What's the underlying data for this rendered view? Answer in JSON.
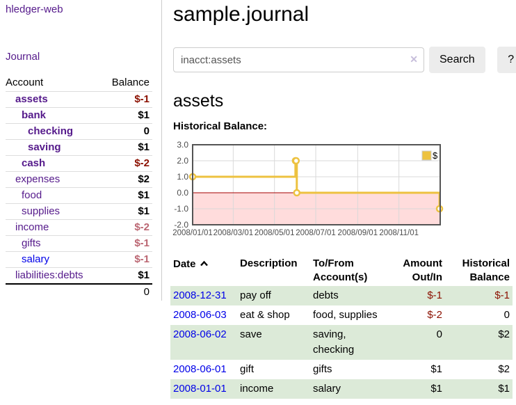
{
  "sidebar": {
    "brand": "hledger-web",
    "journal_label": "Journal",
    "accounts_table": {
      "headers": {
        "account": "Account",
        "balance": "Balance"
      },
      "rows": [
        {
          "account": "assets",
          "balance": "$-1",
          "indent": 1,
          "bold": true,
          "link_color": "purple",
          "balance_class": "neg-strong"
        },
        {
          "account": "bank",
          "balance": "$1",
          "indent": 2,
          "bold": true,
          "link_color": "purple",
          "balance_class": ""
        },
        {
          "account": "checking",
          "balance": "0",
          "indent": 3,
          "bold": true,
          "link_color": "purple",
          "balance_class": ""
        },
        {
          "account": "saving",
          "balance": "$1",
          "indent": 3,
          "bold": true,
          "link_color": "purple",
          "balance_class": ""
        },
        {
          "account": "cash",
          "balance": "$-2",
          "indent": 2,
          "bold": true,
          "link_color": "purple",
          "balance_class": "neg-strong"
        },
        {
          "account": "expenses",
          "balance": "$2",
          "indent": 1,
          "bold": false,
          "link_color": "purple",
          "balance_class": ""
        },
        {
          "account": "food",
          "balance": "$1",
          "indent": 2,
          "bold": false,
          "link_color": "purple",
          "balance_class": ""
        },
        {
          "account": "supplies",
          "balance": "$1",
          "indent": 2,
          "bold": false,
          "link_color": "purple",
          "balance_class": ""
        },
        {
          "account": "income",
          "balance": "$-2",
          "indent": 1,
          "bold": false,
          "link_color": "purple",
          "balance_class": "neg-muted"
        },
        {
          "account": "gifts",
          "balance": "$-1",
          "indent": 2,
          "bold": false,
          "link_color": "purple",
          "balance_class": "neg-muted"
        },
        {
          "account": "salary",
          "balance": "$-1",
          "indent": 2,
          "bold": false,
          "link_color": "blue",
          "balance_class": "neg-muted"
        },
        {
          "account": "liabilities:debts",
          "balance": "$1",
          "indent": 1,
          "bold": false,
          "link_color": "purple",
          "balance_class": ""
        }
      ],
      "total": "0"
    }
  },
  "header": {
    "title": "sample.journal"
  },
  "search": {
    "query": "inacct:assets",
    "clear_icon": "✕",
    "button_label": "Search",
    "help_label": "?"
  },
  "account_page": {
    "heading": "assets",
    "chart_title": "Historical Balance:"
  },
  "chart_data": {
    "type": "line",
    "step": true,
    "title": "Historical Balance",
    "legend_position": "top-right",
    "ylim": [
      -2,
      3
    ],
    "xlim_days": [
      0,
      366
    ],
    "grid": true,
    "colors": {
      "series": "#edc240",
      "marker_fill": "#ffffff",
      "grid": "#d9d9d9",
      "border": "#545454",
      "negative_region": "#ffdcdc",
      "zero_line": "#a40000"
    },
    "series": [
      {
        "name": "$",
        "color": "#edc240",
        "points": [
          {
            "date": "2008/01/01",
            "day": 0,
            "value": 1
          },
          {
            "date": "2008/06/01",
            "day": 152,
            "value": 2
          },
          {
            "date": "2008/06/02",
            "day": 153,
            "value": 2
          },
          {
            "date": "2008/06/03",
            "day": 154,
            "value": 0
          },
          {
            "date": "2008/12/31",
            "day": 365,
            "value": -1
          }
        ]
      }
    ],
    "y_ticks": [
      {
        "label": "3.0",
        "value": 3
      },
      {
        "label": "2.0",
        "value": 2
      },
      {
        "label": "1.0",
        "value": 1
      },
      {
        "label": "0.0",
        "value": 0
      },
      {
        "label": "-1.0",
        "value": -1
      },
      {
        "label": "-2.0",
        "value": -2
      }
    ],
    "x_ticks": [
      {
        "label": "2008/01/01",
        "day": 0
      },
      {
        "label": "2008/03/01",
        "day": 60
      },
      {
        "label": "2008/05/01",
        "day": 121
      },
      {
        "label": "2008/07/01",
        "day": 182
      },
      {
        "label": "2008/09/01",
        "day": 244
      },
      {
        "label": "2008/11/01",
        "day": 305
      }
    ]
  },
  "transactions": {
    "headers": {
      "date": "Date",
      "description": "Description",
      "tofrom": "To/From Account(s)",
      "amount": "Amount Out/In",
      "balance": "Historical Balance"
    },
    "rows": [
      {
        "date": "2008-12-31",
        "description": "pay off",
        "accounts": "debts",
        "amount": "$-1",
        "balance": "$-1",
        "amount_neg": true,
        "balance_neg": true
      },
      {
        "date": "2008-06-03",
        "description": "eat & shop",
        "accounts": "food, supplies",
        "amount": "$-2",
        "balance": "0",
        "amount_neg": true,
        "balance_neg": false
      },
      {
        "date": "2008-06-02",
        "description": "save",
        "accounts": "saving, checking",
        "amount": "0",
        "balance": "$2",
        "amount_neg": false,
        "balance_neg": false
      },
      {
        "date": "2008-06-01",
        "description": "gift",
        "accounts": "gifts",
        "amount": "$1",
        "balance": "$2",
        "amount_neg": false,
        "balance_neg": false
      },
      {
        "date": "2008-01-01",
        "description": "income",
        "accounts": "salary",
        "amount": "$1",
        "balance": "$1",
        "amount_neg": false,
        "balance_neg": false
      }
    ]
  }
}
